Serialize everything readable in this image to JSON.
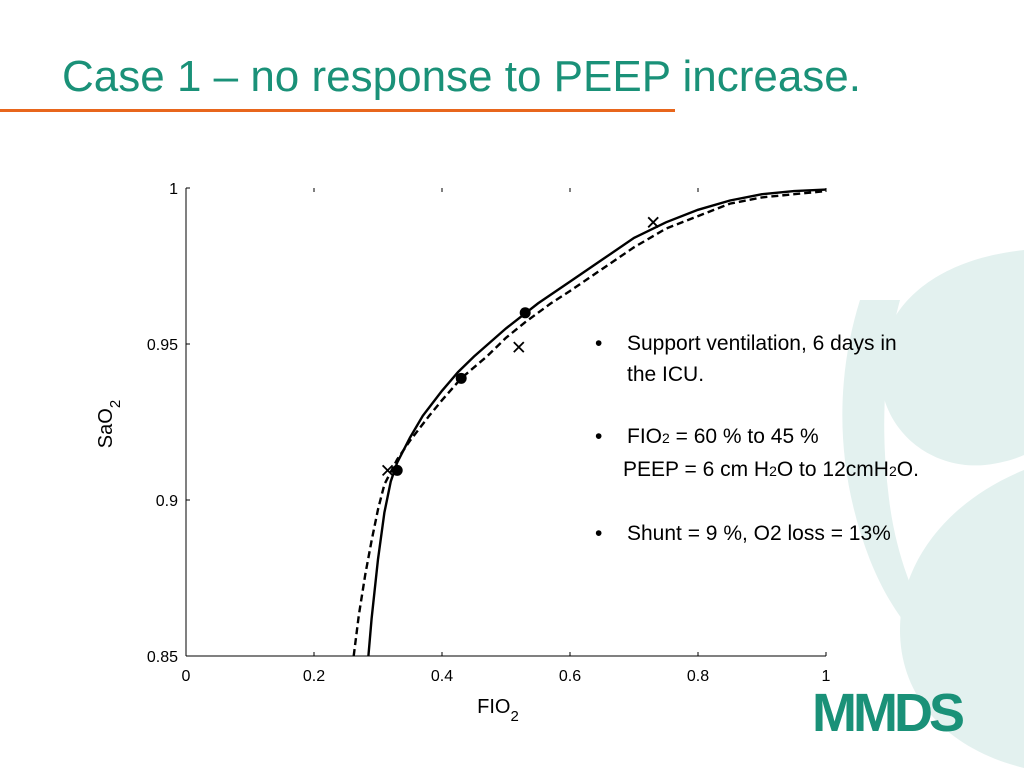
{
  "slide": {
    "title": "Case 1 – no response to PEEP increase."
  },
  "notes": {
    "b1_line1": "Support ventilation, 6 days in",
    "b1_line2": "the ICU.",
    "b2_line1": "FIO",
    "b2_sub": "2",
    "b2_rest": " =  60 %   to 45 %",
    "b2_peep_a": "PEEP = 6 cm H",
    "b2_peep_sub1": "2",
    "b2_peep_b": "O to 12cmH",
    "b2_peep_sub2": "2",
    "b2_peep_c": "O.",
    "b3": "Shunt = 9 %, O2 loss  = 13%",
    "bullet_char": "•"
  },
  "logo": {
    "text": "MMDS"
  },
  "colors": {
    "title": "#1a9178",
    "rule": "#e8661c",
    "deco": "#e3f1ef",
    "logo": "#1a9178"
  },
  "chart_data": {
    "type": "line",
    "xlabel": "FIO",
    "xlabel_sub": "2",
    "ylabel": "SaO",
    "ylabel_sub": "2",
    "xlim": [
      0,
      1
    ],
    "ylim": [
      0.85,
      1
    ],
    "xticks": [
      0,
      0.2,
      0.4,
      0.6,
      0.8,
      1
    ],
    "xtick_labels": [
      "0",
      "0.2",
      "0.4",
      "0.6",
      "0.8",
      "1"
    ],
    "yticks": [
      0.85,
      0.9,
      0.95,
      1
    ],
    "ytick_labels": [
      "0.85",
      "0.9",
      "0.95",
      "1"
    ],
    "grid": false,
    "series": [
      {
        "style": "solid",
        "x": [
          0.285,
          0.29,
          0.3,
          0.31,
          0.32,
          0.33,
          0.35,
          0.37,
          0.4,
          0.425,
          0.45,
          0.5,
          0.55,
          0.6,
          0.65,
          0.7,
          0.75,
          0.8,
          0.85,
          0.9,
          0.95,
          1.0
        ],
        "y": [
          0.85,
          0.862,
          0.881,
          0.896,
          0.906,
          0.912,
          0.92,
          0.927,
          0.935,
          0.941,
          0.946,
          0.955,
          0.963,
          0.97,
          0.977,
          0.984,
          0.989,
          0.993,
          0.996,
          0.998,
          0.999,
          0.9995
        ]
      },
      {
        "style": "dashed",
        "x": [
          0.262,
          0.27,
          0.28,
          0.29,
          0.3,
          0.31,
          0.33,
          0.35,
          0.38,
          0.4,
          0.43,
          0.47,
          0.5,
          0.53,
          0.57,
          0.6,
          0.65,
          0.7,
          0.75,
          0.8,
          0.85,
          0.9,
          0.95,
          1.0
        ],
        "y": [
          0.85,
          0.863,
          0.876,
          0.887,
          0.897,
          0.905,
          0.913,
          0.919,
          0.927,
          0.932,
          0.939,
          0.946,
          0.952,
          0.957,
          0.963,
          0.967,
          0.974,
          0.981,
          0.987,
          0.991,
          0.995,
          0.997,
          0.998,
          0.999
        ]
      }
    ],
    "points_circle": [
      {
        "x": 0.33,
        "y": 0.9095
      },
      {
        "x": 0.43,
        "y": 0.939
      },
      {
        "x": 0.53,
        "y": 0.96
      }
    ],
    "points_cross": [
      {
        "x": 0.315,
        "y": 0.9095
      },
      {
        "x": 0.52,
        "y": 0.949
      },
      {
        "x": 0.73,
        "y": 0.989
      }
    ]
  }
}
